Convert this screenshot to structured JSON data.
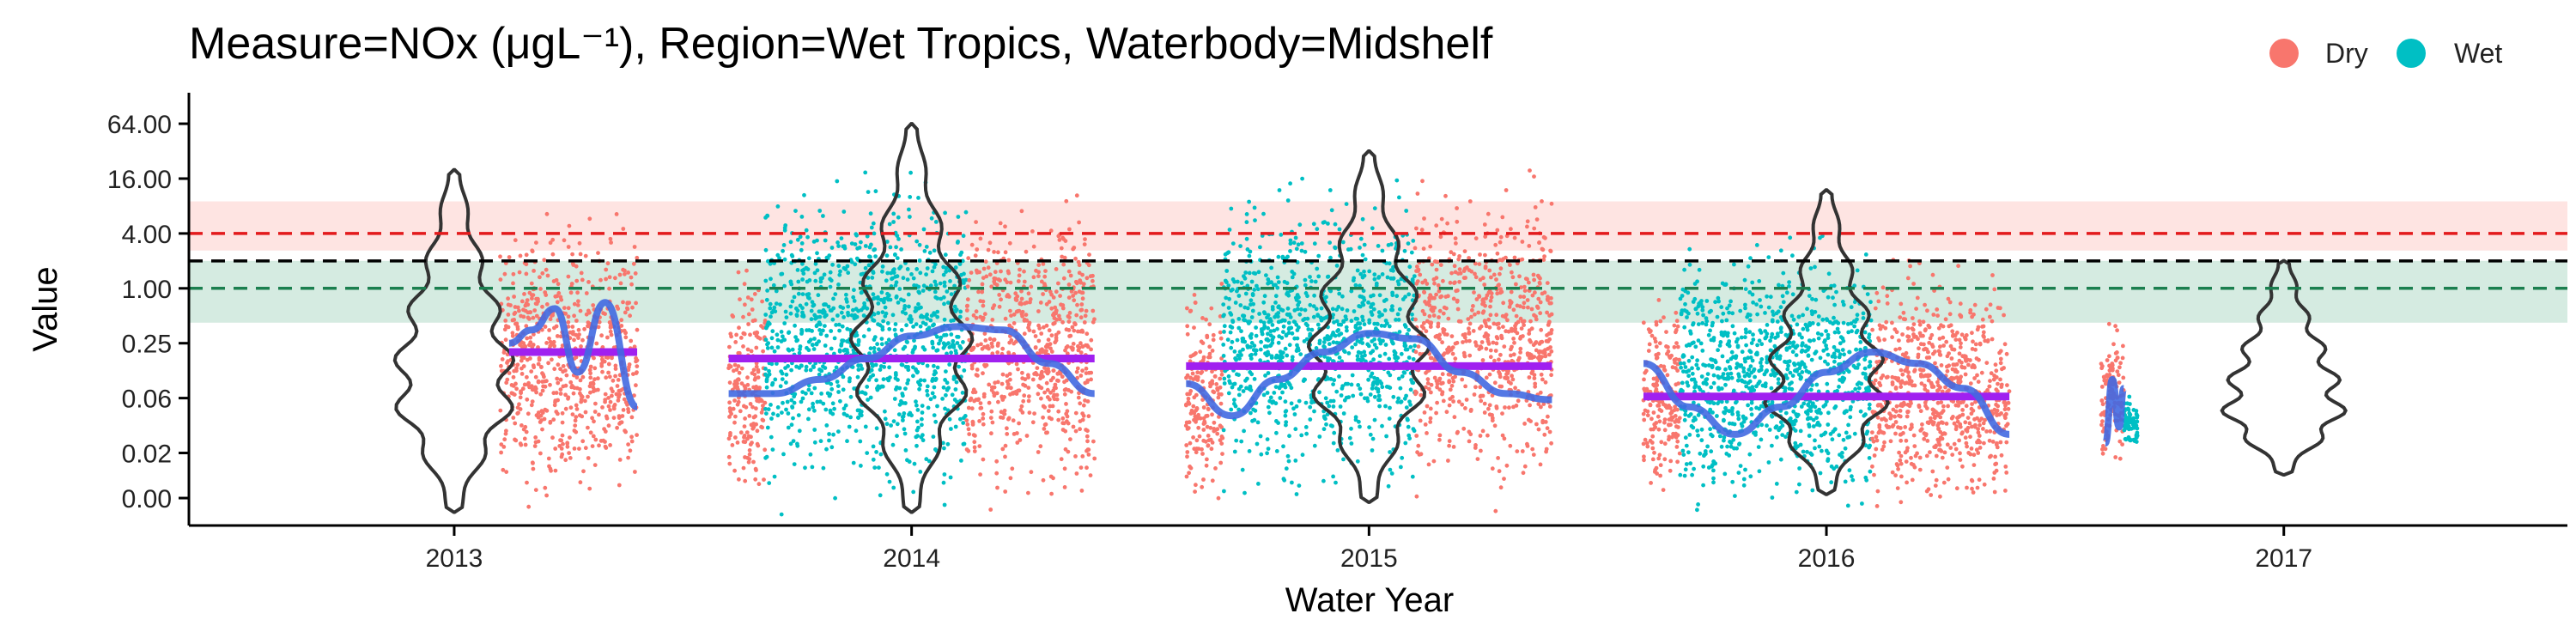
{
  "chart_data": {
    "type": "scatter",
    "title": "Measure=NOx (μgL⁻¹), Region=Wet Tropics, Waterbody=Midshelf",
    "xlabel": "Water Year",
    "ylabel": "Value",
    "x_ticks": [
      "2013",
      "2014",
      "2015",
      "2016",
      "2017"
    ],
    "y_ticks": [
      "0.00",
      "0.02",
      "0.06",
      "0.25",
      "1.00",
      "4.00",
      "16.00",
      "64.00"
    ],
    "y_tick_values": [
      0.005,
      0.015625,
      0.0625,
      0.25,
      1,
      4,
      16,
      64
    ],
    "ylim": [
      0.0025,
      140
    ],
    "xlim": [
      2012.42,
      2017.62
    ],
    "legend": {
      "position": "top-right",
      "entries": [
        {
          "label": "Dry",
          "color": "#F8766D"
        },
        {
          "label": "Wet",
          "color": "#00BFC4"
        }
      ]
    },
    "reference_lines": [
      {
        "name": "upper-guideline",
        "value": 4.0,
        "color": "#E31A1C",
        "band": [
          2.6,
          9.0
        ],
        "band_color": "#F8766D"
      },
      {
        "name": "median-guideline",
        "value": 2.0,
        "color": "#000000"
      },
      {
        "name": "lower-guideline",
        "value": 1.0,
        "color": "#1B7F4F",
        "band": [
          0.42,
          2.0
        ],
        "band_color": "#2E9D6A"
      }
    ],
    "observations": [
      {
        "year": "2013",
        "season": "Dry",
        "x_range": [
          2013.1,
          2013.4
        ],
        "y_range": [
          0.003,
          25
        ]
      },
      {
        "year": "2014",
        "season": "Dry",
        "x_range": [
          2013.6,
          2013.68
        ],
        "y_range": [
          0.003,
          5
        ]
      },
      {
        "year": "2014",
        "season": "Wet",
        "x_range": [
          2013.68,
          2014.12
        ],
        "y_range": [
          0.003,
          64
        ]
      },
      {
        "year": "2014",
        "season": "Dry",
        "x_range": [
          2014.12,
          2014.4
        ],
        "y_range": [
          0.003,
          30
        ]
      },
      {
        "year": "2015",
        "season": "Dry",
        "x_range": [
          2014.6,
          2014.68
        ],
        "y_range": [
          0.003,
          4
        ]
      },
      {
        "year": "2015",
        "season": "Wet",
        "x_range": [
          2014.68,
          2015.1
        ],
        "y_range": [
          0.003,
          50
        ]
      },
      {
        "year": "2015",
        "season": "Dry",
        "x_range": [
          2015.1,
          2015.4
        ],
        "y_range": [
          0.003,
          60
        ]
      },
      {
        "year": "2016",
        "season": "Dry",
        "x_range": [
          2015.6,
          2015.68
        ],
        "y_range": [
          0.003,
          3
        ]
      },
      {
        "year": "2016",
        "season": "Wet",
        "x_range": [
          2015.68,
          2016.1
        ],
        "y_range": [
          0.003,
          10
        ]
      },
      {
        "year": "2016",
        "season": "Dry",
        "x_range": [
          2016.1,
          2016.4
        ],
        "y_range": [
          0.003,
          5
        ]
      },
      {
        "year": "2017",
        "season": "Dry",
        "x_range": [
          2016.6,
          2016.65
        ],
        "y_range": [
          0.01,
          1
        ]
      },
      {
        "year": "2017",
        "season": "Wet",
        "x_range": [
          2016.65,
          2016.68
        ],
        "y_range": [
          0.02,
          0.12
        ]
      }
    ],
    "annual_means": [
      {
        "year": "2013",
        "value": 0.2,
        "x_range": [
          2013.12,
          2013.4
        ]
      },
      {
        "year": "2014",
        "value": 0.17,
        "x_range": [
          2013.6,
          2014.4
        ]
      },
      {
        "year": "2015",
        "value": 0.14,
        "x_range": [
          2014.6,
          2015.4
        ]
      },
      {
        "year": "2016",
        "value": 0.065,
        "x_range": [
          2015.6,
          2016.4
        ]
      }
    ],
    "violins": [
      {
        "year": "2013",
        "median": 0.08,
        "y_range": [
          0.0035,
          20
        ]
      },
      {
        "year": "2014",
        "median": 0.17,
        "y_range": [
          0.0035,
          64
        ]
      },
      {
        "year": "2015",
        "median": 0.14,
        "y_range": [
          0.0045,
          32
        ]
      },
      {
        "year": "2016",
        "median": 0.06,
        "y_range": [
          0.0055,
          12
        ]
      },
      {
        "year": "2017",
        "median": 0.045,
        "y_range": [
          0.009,
          2
        ]
      }
    ],
    "trend": {
      "name": "gam-smoother",
      "points": [
        [
          2013.12,
          0.25
        ],
        [
          2013.17,
          0.35
        ],
        [
          2013.22,
          0.6
        ],
        [
          2013.27,
          0.12
        ],
        [
          2013.33,
          0.7
        ],
        [
          2013.4,
          0.05
        ],
        [
          2013.6,
          0.07
        ],
        [
          2013.7,
          0.07
        ],
        [
          2013.8,
          0.1
        ],
        [
          2013.9,
          0.17
        ],
        [
          2014.0,
          0.3
        ],
        [
          2014.1,
          0.38
        ],
        [
          2014.2,
          0.35
        ],
        [
          2014.3,
          0.15
        ],
        [
          2014.4,
          0.07
        ],
        [
          2014.6,
          0.09
        ],
        [
          2014.7,
          0.04
        ],
        [
          2014.8,
          0.1
        ],
        [
          2014.9,
          0.2
        ],
        [
          2015.0,
          0.32
        ],
        [
          2015.1,
          0.28
        ],
        [
          2015.2,
          0.12
        ],
        [
          2015.3,
          0.07
        ],
        [
          2015.4,
          0.06
        ],
        [
          2015.6,
          0.15
        ],
        [
          2015.7,
          0.05
        ],
        [
          2015.8,
          0.025
        ],
        [
          2015.9,
          0.05
        ],
        [
          2016.0,
          0.12
        ],
        [
          2016.1,
          0.2
        ],
        [
          2016.2,
          0.15
        ],
        [
          2016.3,
          0.08
        ],
        [
          2016.4,
          0.025
        ],
        [
          2016.61,
          0.02
        ],
        [
          2016.625,
          0.1
        ],
        [
          2016.64,
          0.03
        ],
        [
          2016.65,
          0.08
        ]
      ]
    }
  }
}
